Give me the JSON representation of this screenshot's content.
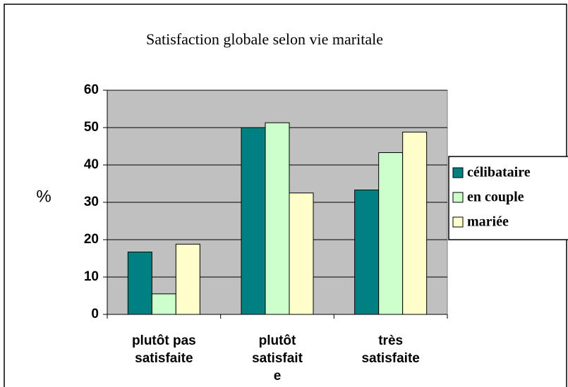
{
  "chart_data": {
    "type": "bar",
    "title": "Satisfaction globale selon vie  maritale",
    "y_label": "%",
    "categories": [
      [
        "plutôt pas",
        "satisfaite"
      ],
      [
        "plutôt",
        "satisfait",
        "e"
      ],
      [
        "très",
        "satisfaite"
      ]
    ],
    "series": [
      {
        "name": "célibataire",
        "color": "#008080",
        "values": [
          16.7,
          50,
          33.3
        ]
      },
      {
        "name": "en couple",
        "color": "#ccffcc",
        "values": [
          5.5,
          51.3,
          43.3
        ]
      },
      {
        "name": "mariée",
        "color": "#ffffcc",
        "values": [
          18.8,
          32.5,
          48.8
        ]
      }
    ],
    "ylim": [
      0,
      60
    ],
    "yticks": [
      0,
      10,
      20,
      30,
      40,
      50,
      60
    ],
    "grid": true,
    "legend": "right"
  }
}
